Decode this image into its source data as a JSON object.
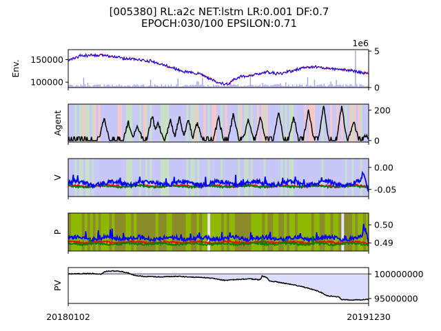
{
  "title_line1": "[005380] RL:a2c NET:lstm LR:0.001 DF:0.7",
  "title_line2": "EPOCH:030/100 EPSILON:0.71",
  "colors": {
    "price": "#0000ff",
    "price_alt": "#ff0000",
    "volume": "#a0a0f0",
    "agent": "#000000",
    "v_buy": "#0000ff",
    "v_sell": "#ff0000",
    "v_hold": "#008000",
    "bg_buy": "#c8c8f8",
    "bg_sell": "#f8c8c8",
    "bg_hold": "#c8e0c8",
    "p_buy": "#8a8c2a",
    "p_sell": "#8fb800",
    "pv_line": "#000000",
    "pv_base": "#808080",
    "pv_fill": "#dcdcfc"
  },
  "chart_data": [
    {
      "type": "line",
      "ylabel": "Env.",
      "yticks": [
        "150000",
        "100000"
      ],
      "y2ticks": [
        "5",
        "0"
      ],
      "y2_offset": "1e6",
      "ylim": [
        88000,
        172000
      ],
      "y2lim": [
        0,
        5.2
      ],
      "series": [
        {
          "keypoints": [
            [
              0,
              148000
            ],
            [
              0.04,
              158000
            ],
            [
              0.12,
              160000
            ],
            [
              0.2,
              152000
            ],
            [
              0.28,
              146000
            ],
            [
              0.34,
              133000
            ],
            [
              0.38,
              125000
            ],
            [
              0.44,
              118000
            ],
            [
              0.48,
              105000
            ],
            [
              0.5,
              98000
            ],
            [
              0.53,
              95000
            ],
            [
              0.55,
              104000
            ],
            [
              0.58,
              113000
            ],
            [
              0.62,
              116000
            ],
            [
              0.66,
              122000
            ],
            [
              0.7,
              118000
            ],
            [
              0.74,
              124000
            ],
            [
              0.78,
              132000
            ],
            [
              0.82,
              134000
            ],
            [
              0.86,
              131000
            ],
            [
              0.9,
              128000
            ],
            [
              0.94,
              126000
            ],
            [
              0.98,
              121000
            ],
            [
              1,
              120000
            ]
          ]
        }
      ]
    },
    {
      "type": "line",
      "ylabel": "Agent",
      "yticks": [
        "200",
        "0"
      ],
      "ylim": [
        -10,
        240
      ],
      "peaks": [
        [
          0.12,
          150
        ],
        [
          0.2,
          120
        ],
        [
          0.23,
          100
        ],
        [
          0.28,
          170
        ],
        [
          0.3,
          120
        ],
        [
          0.34,
          140
        ],
        [
          0.37,
          160
        ],
        [
          0.4,
          140
        ],
        [
          0.43,
          120
        ],
        [
          0.5,
          150
        ],
        [
          0.55,
          180
        ],
        [
          0.6,
          140
        ],
        [
          0.64,
          160
        ],
        [
          0.7,
          190
        ],
        [
          0.75,
          160
        ],
        [
          0.8,
          200
        ],
        [
          0.85,
          230
        ],
        [
          0.91,
          220
        ],
        [
          0.95,
          130
        ],
        [
          0.99,
          30
        ]
      ]
    },
    {
      "type": "line",
      "ylabel": "V",
      "yticks": [
        "0.00",
        "-0.05"
      ],
      "ylim": [
        -0.066,
        0.02
      ],
      "series": [
        {
          "name": "buy",
          "center": -0.036
        },
        {
          "name": "sell",
          "center": -0.042
        },
        {
          "name": "hold",
          "center": -0.043
        }
      ]
    },
    {
      "type": "line",
      "ylabel": "P",
      "yticks": [
        "0.50",
        "0.49"
      ],
      "ylim": [
        0.4855,
        0.5065
      ],
      "series": [
        {
          "name": "buy",
          "center": 0.4925
        },
        {
          "name": "sell",
          "center": 0.4903
        },
        {
          "name": "hold",
          "center": 0.4895
        }
      ]
    },
    {
      "type": "area",
      "ylabel": "PV",
      "yticks": [
        "100000000",
        "95000000"
      ],
      "ylim": [
        94000000,
        101300000
      ],
      "baseline": 100000000,
      "keypoints": [
        [
          0,
          100000000
        ],
        [
          0.08,
          100100000
        ],
        [
          0.11,
          99900000
        ],
        [
          0.12,
          100500000
        ],
        [
          0.15,
          100600000
        ],
        [
          0.18,
          100500000
        ],
        [
          0.2,
          100200000
        ],
        [
          0.22,
          99700000
        ],
        [
          0.25,
          99500000
        ],
        [
          0.3,
          99400000
        ],
        [
          0.36,
          99500000
        ],
        [
          0.4,
          99400000
        ],
        [
          0.44,
          99300000
        ],
        [
          0.48,
          99100000
        ],
        [
          0.52,
          98700000
        ],
        [
          0.6,
          99000000
        ],
        [
          0.64,
          98800000
        ],
        [
          0.645,
          99600000
        ],
        [
          0.66,
          99300000
        ],
        [
          0.67,
          98600000
        ],
        [
          0.72,
          98100000
        ],
        [
          0.75,
          97800000
        ],
        [
          0.8,
          97100000
        ],
        [
          0.84,
          96300000
        ],
        [
          0.86,
          95600000
        ],
        [
          0.9,
          95300000
        ],
        [
          0.91,
          94800000
        ],
        [
          0.94,
          94700000
        ],
        [
          1,
          94800000
        ]
      ]
    }
  ],
  "x_tick_labels": [
    "20180102",
    "20191230"
  ]
}
